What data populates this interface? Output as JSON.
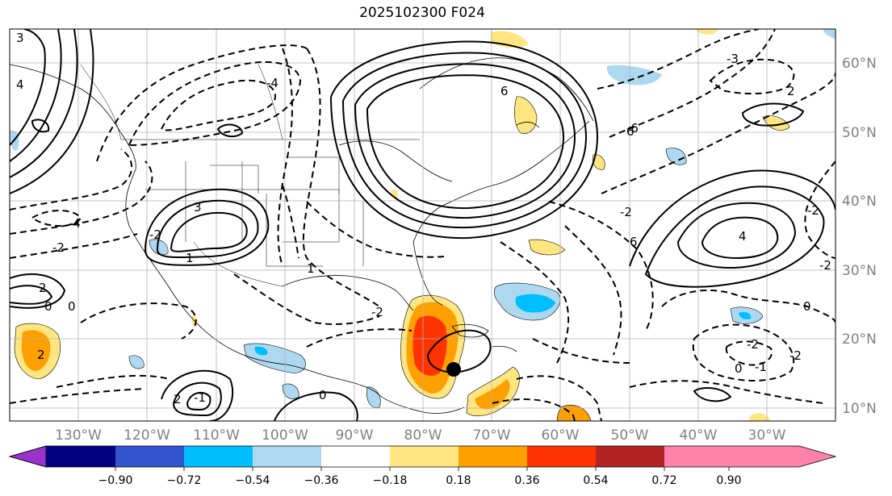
{
  "title": "2025102300 F024",
  "lat_labels": [
    "60°N",
    "50°N",
    "40°N",
    "30°N",
    "20°N",
    "10°N"
  ],
  "lon_labels": [
    "130°W",
    "120°W",
    "110°W",
    "100°W",
    "90°W",
    "80°W",
    "70°W",
    "60°W",
    "50°W",
    "40°W",
    "30°W"
  ],
  "colorbar": {
    "colors": [
      "#9933cc",
      "#000080",
      "#3355cc",
      "#00bfff",
      "#add8f0",
      "#ffffff",
      "#ffe680",
      "#ffa000",
      "#ff3300",
      "#b22222",
      "#ff82aa"
    ],
    "tick_labels": [
      "−0.90",
      "−0.72",
      "−0.54",
      "−0.36",
      "−0.18",
      "0.18",
      "0.36",
      "0.54",
      "0.72",
      "0.90"
    ]
  },
  "contour_labels": [
    "3",
    "4",
    "6",
    "3",
    "0",
    "2",
    "4",
    "6",
    "6",
    "-3",
    "-4",
    "-2",
    "-2",
    "2",
    "-2",
    "0",
    "-2",
    "-4",
    "0",
    "1",
    "-1",
    "-2",
    "-6",
    "-2",
    "2",
    "-2",
    "-1",
    "0",
    "1",
    "0",
    "2",
    "-2"
  ],
  "colors": {
    "positive_contour": "#000000",
    "negative_contour": "#000000",
    "grid": "#b0b0b0",
    "tick_label": "#808080",
    "marker": "#000000"
  }
}
